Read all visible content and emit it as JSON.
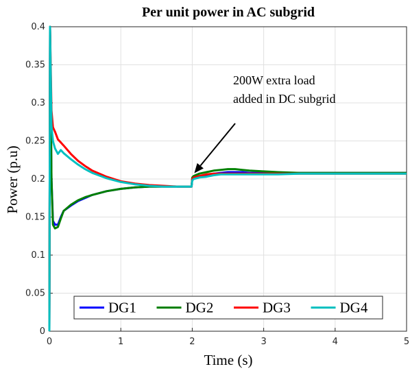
{
  "chart_data": {
    "type": "line",
    "title": "Per unit power in AC subgrid",
    "xlabel": "Time (s)",
    "ylabel": "Power (p.u)",
    "xlim": [
      0,
      5
    ],
    "ylim": [
      0,
      0.4
    ],
    "xticks": [
      "0",
      "1",
      "2",
      "3",
      "4",
      "5"
    ],
    "yticks": [
      "0",
      "0.05",
      "0.1",
      "0.15",
      "0.2",
      "0.25",
      "0.3",
      "0.35",
      "0.4"
    ],
    "grid": true,
    "legend_position": "bottom",
    "annotation": {
      "line1": "200W extra load",
      "line2": "added in DC subgrid",
      "arrow_target": [
        2.0,
        0.205
      ]
    },
    "series": [
      {
        "name": "DG1",
        "color": "#0000ff",
        "x": [
          0,
          0.01,
          0.03,
          0.05,
          0.08,
          0.12,
          0.16,
          0.2,
          0.3,
          0.4,
          0.5,
          0.6,
          0.8,
          1.0,
          1.2,
          1.4,
          1.6,
          1.8,
          1.99,
          2.0,
          2.02,
          2.1,
          2.2,
          2.3,
          2.4,
          2.5,
          2.6,
          2.7,
          2.8,
          3.0,
          3.2,
          3.5,
          4.0,
          4.5,
          5.0
        ],
        "y": [
          0,
          0.4,
          0.2,
          0.145,
          0.14,
          0.14,
          0.15,
          0.158,
          0.165,
          0.171,
          0.175,
          0.179,
          0.184,
          0.187,
          0.189,
          0.19,
          0.19,
          0.19,
          0.19,
          0.2,
          0.201,
          0.203,
          0.205,
          0.207,
          0.208,
          0.209,
          0.209,
          0.209,
          0.208,
          0.208,
          0.208,
          0.208,
          0.208,
          0.208,
          0.208
        ]
      },
      {
        "name": "DG2",
        "color": "#008000",
        "x": [
          0,
          0.01,
          0.03,
          0.05,
          0.08,
          0.12,
          0.16,
          0.2,
          0.3,
          0.4,
          0.5,
          0.6,
          0.8,
          1.0,
          1.2,
          1.4,
          1.6,
          1.8,
          1.99,
          2.0,
          2.02,
          2.1,
          2.2,
          2.3,
          2.4,
          2.5,
          2.6,
          2.7,
          2.8,
          3.0,
          3.2,
          3.5,
          4.0,
          4.5,
          5.0
        ],
        "y": [
          0,
          0.4,
          0.2,
          0.14,
          0.135,
          0.137,
          0.148,
          0.158,
          0.166,
          0.172,
          0.176,
          0.179,
          0.184,
          0.187,
          0.189,
          0.19,
          0.19,
          0.19,
          0.19,
          0.202,
          0.204,
          0.207,
          0.209,
          0.211,
          0.212,
          0.213,
          0.213,
          0.212,
          0.211,
          0.21,
          0.209,
          0.208,
          0.208,
          0.208,
          0.208
        ]
      },
      {
        "name": "DG3",
        "color": "#ff0000",
        "x": [
          0,
          0.01,
          0.03,
          0.05,
          0.08,
          0.12,
          0.16,
          0.2,
          0.3,
          0.4,
          0.5,
          0.6,
          0.8,
          1.0,
          1.2,
          1.4,
          1.6,
          1.8,
          1.99,
          2.0,
          2.02,
          2.1,
          2.2,
          2.3,
          2.4,
          2.5,
          2.6,
          2.7,
          2.8,
          3.0,
          3.2,
          3.5,
          4.0,
          4.5,
          5.0
        ],
        "y": [
          0,
          0.4,
          0.29,
          0.268,
          0.262,
          0.252,
          0.248,
          0.244,
          0.233,
          0.224,
          0.217,
          0.211,
          0.203,
          0.197,
          0.194,
          0.192,
          0.191,
          0.19,
          0.19,
          0.2,
          0.202,
          0.204,
          0.206,
          0.207,
          0.207,
          0.207,
          0.207,
          0.207,
          0.207,
          0.207,
          0.207,
          0.207,
          0.207,
          0.207,
          0.207
        ]
      },
      {
        "name": "DG4",
        "color": "#00c0c0",
        "x": [
          0,
          0.01,
          0.03,
          0.05,
          0.08,
          0.12,
          0.16,
          0.2,
          0.3,
          0.4,
          0.5,
          0.6,
          0.8,
          1.0,
          1.2,
          1.4,
          1.6,
          1.8,
          1.99,
          2.0,
          2.02,
          2.1,
          2.2,
          2.3,
          2.4,
          2.5,
          2.6,
          2.7,
          2.8,
          3.0,
          3.2,
          3.5,
          4.0,
          4.5,
          5.0
        ],
        "y": [
          0,
          0.4,
          0.27,
          0.25,
          0.24,
          0.233,
          0.238,
          0.234,
          0.226,
          0.219,
          0.213,
          0.208,
          0.201,
          0.196,
          0.193,
          0.191,
          0.19,
          0.19,
          0.19,
          0.198,
          0.2,
          0.202,
          0.203,
          0.205,
          0.206,
          0.206,
          0.206,
          0.206,
          0.206,
          0.206,
          0.206,
          0.207,
          0.207,
          0.207,
          0.207
        ]
      }
    ]
  }
}
